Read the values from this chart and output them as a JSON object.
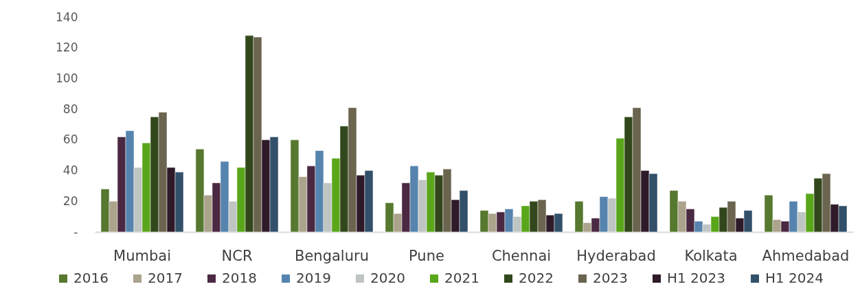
{
  "chart_data": {
    "type": "bar",
    "categories": [
      "Mumbai",
      "NCR",
      "Bengaluru",
      "Pune",
      "Chennai",
      "Hyderabad",
      "Kolkata",
      "Ahmedabad"
    ],
    "series": [
      {
        "name": "2016",
        "color": "#56782f",
        "values": [
          28,
          54,
          60,
          19,
          14,
          20,
          27,
          24
        ]
      },
      {
        "name": "2017",
        "color": "#aba38b",
        "values": [
          20,
          24,
          36,
          12,
          12,
          6,
          20,
          8
        ]
      },
      {
        "name": "2018",
        "color": "#4b2942",
        "values": [
          62,
          32,
          43,
          32,
          13,
          9,
          15,
          7
        ]
      },
      {
        "name": "2019",
        "color": "#5684ae",
        "values": [
          66,
          46,
          53,
          43,
          15,
          23,
          7,
          20
        ]
      },
      {
        "name": "2020",
        "color": "#bfc5c3",
        "values": [
          42,
          20,
          32,
          34,
          10,
          22,
          5,
          13
        ]
      },
      {
        "name": "2021",
        "color": "#5aa61a",
        "values": [
          58,
          42,
          48,
          39,
          17,
          61,
          10,
          25
        ]
      },
      {
        "name": "2022",
        "color": "#32481c",
        "values": [
          75,
          128,
          69,
          37,
          20,
          75,
          16,
          35
        ]
      },
      {
        "name": "2023",
        "color": "#6b644e",
        "values": [
          78,
          127,
          81,
          41,
          21,
          81,
          20,
          38
        ]
      },
      {
        "name": "H1 2023",
        "color": "#2e1a29",
        "values": [
          42,
          60,
          37,
          21,
          11,
          40,
          9,
          18
        ]
      },
      {
        "name": "H1 2024",
        "color": "#325069",
        "values": [
          39,
          62,
          40,
          27,
          12,
          38,
          14,
          17
        ]
      }
    ],
    "ylim": [
      0,
      140
    ],
    "yticks": [
      {
        "value": 0,
        "label": "-"
      },
      20,
      40,
      60,
      80,
      100,
      120,
      140
    ],
    "legend": "bottom"
  }
}
